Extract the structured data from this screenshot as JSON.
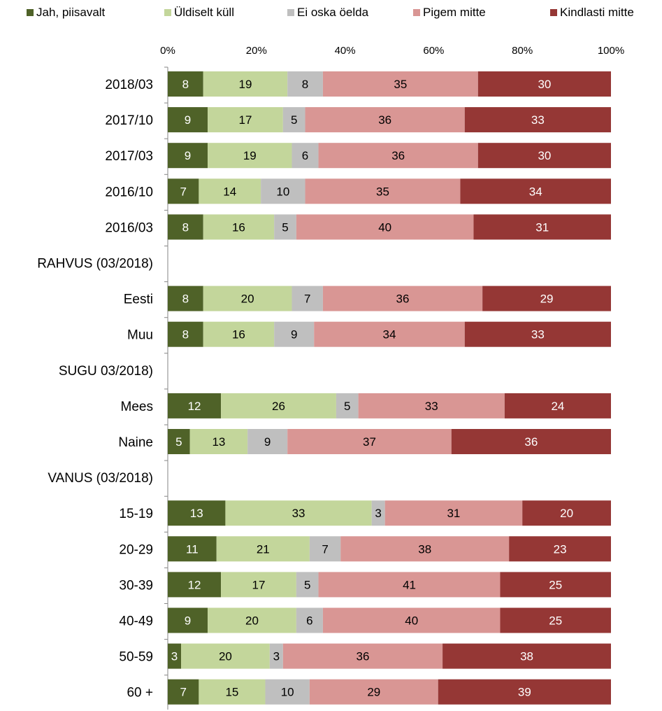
{
  "chart_data": {
    "type": "bar",
    "orientation": "horizontal",
    "stacked": "percent",
    "categories": [
      "2018/03",
      "2017/10",
      "2017/03",
      "2016/10",
      "2016/03",
      "RAHVUS (03/2018)",
      "Eesti",
      "Muu",
      "SUGU 03/2018)",
      "Mees",
      "Naine",
      "VANUS (03/2018)",
      "15-19",
      "20-29",
      "30-39",
      "40-49",
      "50-59",
      "60 +"
    ],
    "series": [
      {
        "name": "Jah, piisavalt",
        "color": "#4f6228",
        "label_color": "#ffffff",
        "values": [
          8,
          9,
          9,
          7,
          8,
          null,
          8,
          8,
          null,
          12,
          5,
          null,
          13,
          11,
          12,
          9,
          3,
          7
        ]
      },
      {
        "name": "Üldiselt küll",
        "color": "#c3d69b",
        "label_color": "#000000",
        "values": [
          19,
          17,
          19,
          14,
          16,
          null,
          20,
          16,
          null,
          26,
          13,
          null,
          33,
          21,
          17,
          20,
          20,
          15
        ]
      },
      {
        "name": "Ei oska öelda",
        "color": "#bfbfbf",
        "label_color": "#000000",
        "values": [
          8,
          5,
          6,
          10,
          5,
          null,
          7,
          9,
          null,
          5,
          9,
          null,
          3,
          7,
          5,
          6,
          3,
          10
        ]
      },
      {
        "name": "Pigem mitte",
        "color": "#d99694",
        "label_color": "#000000",
        "values": [
          35,
          36,
          36,
          35,
          40,
          null,
          36,
          34,
          null,
          33,
          37,
          null,
          31,
          38,
          41,
          40,
          36,
          29
        ]
      },
      {
        "name": "Kindlasti mitte",
        "color": "#953735",
        "label_color": "#ffffff",
        "values": [
          30,
          33,
          30,
          34,
          31,
          null,
          29,
          33,
          null,
          24,
          36,
          null,
          20,
          23,
          25,
          25,
          38,
          39
        ]
      }
    ],
    "xlim": [
      0,
      100
    ],
    "x_ticks": [
      "0%",
      "20%",
      "40%",
      "60%",
      "80%",
      "100%"
    ],
    "x_axis_position": "top",
    "legend_position": "top",
    "grid": false,
    "data_labels": true
  }
}
